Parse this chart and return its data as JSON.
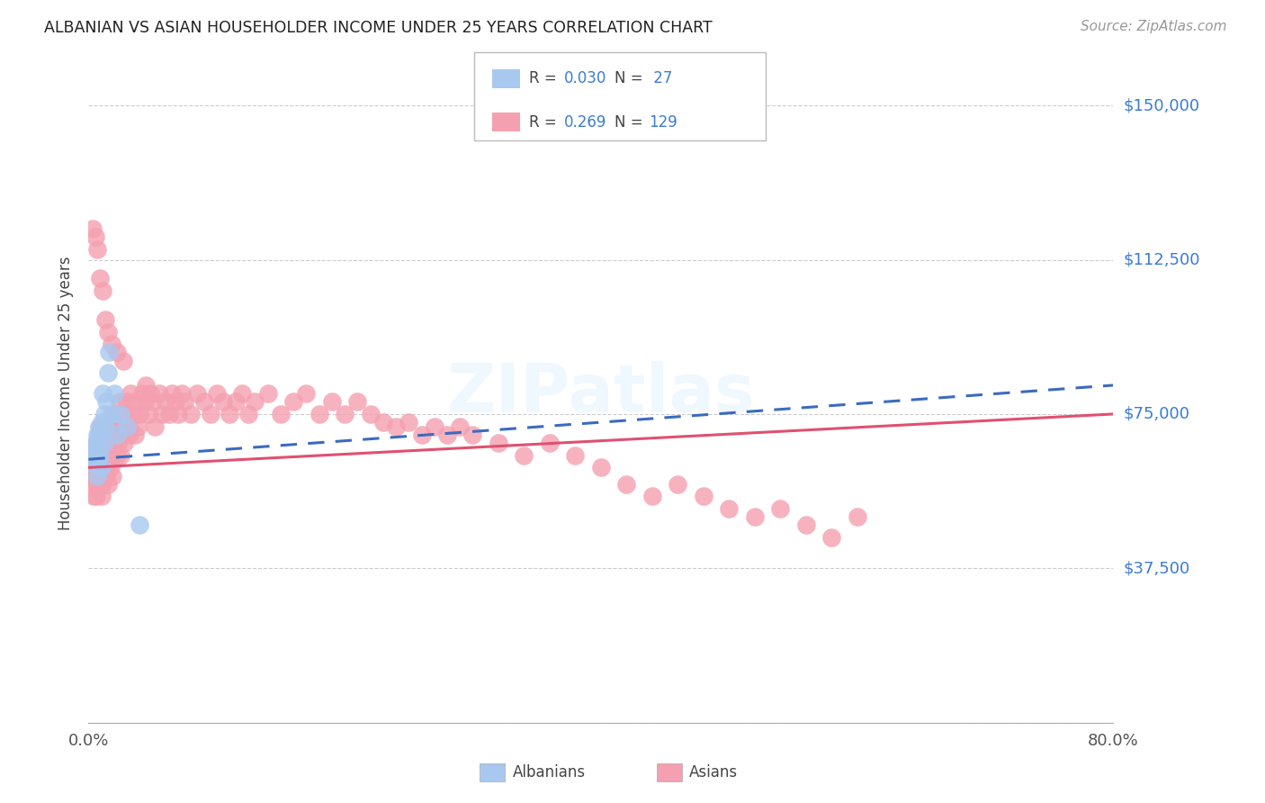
{
  "title": "ALBANIAN VS ASIAN HOUSEHOLDER INCOME UNDER 25 YEARS CORRELATION CHART",
  "source": "Source: ZipAtlas.com",
  "ylabel": "Householder Income Under 25 years",
  "xlim": [
    0.0,
    0.8
  ],
  "ylim": [
    0,
    160000
  ],
  "yticks": [
    0,
    37500,
    75000,
    112500,
    150000
  ],
  "ytick_labels": [
    "",
    "$37,500",
    "$75,000",
    "$112,500",
    "$150,000"
  ],
  "grid_color": "#cccccc",
  "background_color": "#ffffff",
  "watermark": "ZIPatlas",
  "albanian_color": "#a8c8f0",
  "asian_color": "#f4a0b0",
  "albanian_line_color": "#3a6bbf",
  "asian_line_color": "#e05070",
  "albanian_x": [
    0.004,
    0.005,
    0.005,
    0.006,
    0.006,
    0.007,
    0.007,
    0.007,
    0.008,
    0.008,
    0.009,
    0.009,
    0.01,
    0.01,
    0.011,
    0.012,
    0.012,
    0.013,
    0.014,
    0.015,
    0.016,
    0.018,
    0.02,
    0.022,
    0.025,
    0.03,
    0.04
  ],
  "albanian_y": [
    63000,
    65000,
    68000,
    64000,
    67000,
    66000,
    70000,
    60000,
    68000,
    72000,
    65000,
    70000,
    73000,
    62000,
    80000,
    75000,
    68000,
    72000,
    78000,
    85000,
    90000,
    75000,
    80000,
    70000,
    75000,
    72000,
    48000
  ],
  "asian_x": [
    0.003,
    0.004,
    0.004,
    0.005,
    0.005,
    0.006,
    0.006,
    0.006,
    0.007,
    0.007,
    0.007,
    0.008,
    0.008,
    0.009,
    0.009,
    0.009,
    0.01,
    0.01,
    0.01,
    0.011,
    0.011,
    0.011,
    0.012,
    0.012,
    0.013,
    0.013,
    0.014,
    0.014,
    0.015,
    0.015,
    0.015,
    0.016,
    0.016,
    0.017,
    0.017,
    0.018,
    0.018,
    0.019,
    0.019,
    0.02,
    0.02,
    0.021,
    0.022,
    0.022,
    0.023,
    0.024,
    0.025,
    0.025,
    0.026,
    0.027,
    0.028,
    0.03,
    0.031,
    0.032,
    0.033,
    0.035,
    0.036,
    0.037,
    0.038,
    0.04,
    0.042,
    0.044,
    0.045,
    0.047,
    0.048,
    0.05,
    0.052,
    0.055,
    0.057,
    0.06,
    0.063,
    0.065,
    0.068,
    0.07,
    0.073,
    0.075,
    0.08,
    0.085,
    0.09,
    0.095,
    0.1,
    0.105,
    0.11,
    0.115,
    0.12,
    0.125,
    0.13,
    0.14,
    0.15,
    0.16,
    0.17,
    0.18,
    0.19,
    0.2,
    0.21,
    0.22,
    0.23,
    0.24,
    0.25,
    0.26,
    0.27,
    0.28,
    0.29,
    0.3,
    0.32,
    0.34,
    0.36,
    0.38,
    0.4,
    0.42,
    0.44,
    0.46,
    0.48,
    0.5,
    0.52,
    0.54,
    0.56,
    0.58,
    0.6,
    0.003,
    0.005,
    0.007,
    0.009,
    0.011,
    0.013,
    0.015,
    0.018,
    0.022,
    0.027
  ],
  "asian_y": [
    60000,
    55000,
    62000,
    58000,
    65000,
    60000,
    68000,
    55000,
    62000,
    65000,
    58000,
    70000,
    60000,
    65000,
    58000,
    72000,
    63000,
    55000,
    68000,
    60000,
    70000,
    58000,
    65000,
    62000,
    68000,
    72000,
    65000,
    60000,
    70000,
    63000,
    58000,
    72000,
    65000,
    68000,
    62000,
    70000,
    65000,
    72000,
    60000,
    68000,
    75000,
    70000,
    65000,
    72000,
    68000,
    78000,
    70000,
    65000,
    72000,
    75000,
    68000,
    78000,
    72000,
    70000,
    80000,
    75000,
    70000,
    78000,
    72000,
    75000,
    80000,
    78000,
    82000,
    75000,
    80000,
    78000,
    72000,
    80000,
    75000,
    78000,
    75000,
    80000,
    78000,
    75000,
    80000,
    78000,
    75000,
    80000,
    78000,
    75000,
    80000,
    78000,
    75000,
    78000,
    80000,
    75000,
    78000,
    80000,
    75000,
    78000,
    80000,
    75000,
    78000,
    75000,
    78000,
    75000,
    73000,
    72000,
    73000,
    70000,
    72000,
    70000,
    72000,
    70000,
    68000,
    65000,
    68000,
    65000,
    62000,
    58000,
    55000,
    58000,
    55000,
    52000,
    50000,
    52000,
    48000,
    45000,
    50000,
    120000,
    118000,
    115000,
    108000,
    105000,
    98000,
    95000,
    92000,
    90000,
    88000
  ],
  "alb_line_x0": 0.0,
  "alb_line_y0": 64000,
  "alb_line_x1": 0.8,
  "alb_line_y1": 82000,
  "asi_line_x0": 0.0,
  "asi_line_y0": 62000,
  "asi_line_x1": 0.8,
  "asi_line_y1": 75000
}
